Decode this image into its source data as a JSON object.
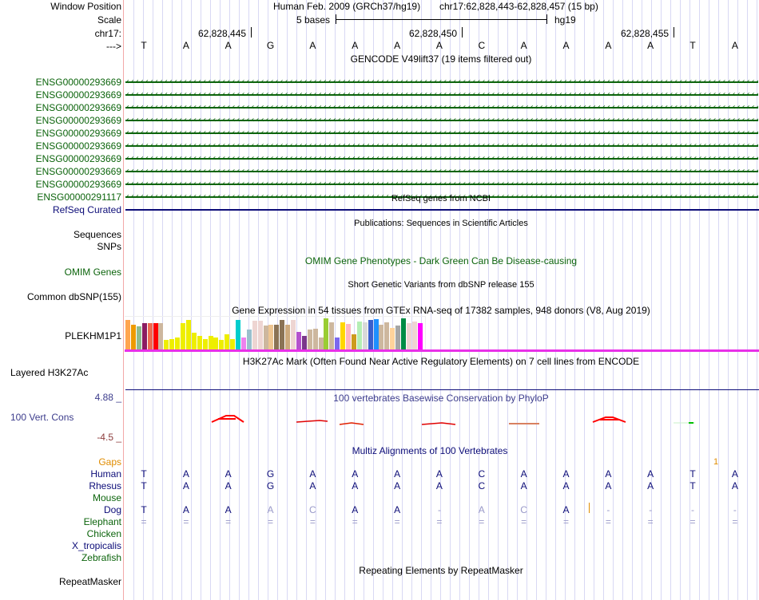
{
  "header": {
    "window_position_label": "Window Position",
    "assembly": "Human Feb. 2009 (GRCh37/hg19)",
    "position": "chr17:62,828,443-62,828,457 (15 bp)",
    "scale_label": "Scale",
    "scale_text": "5 bases",
    "scale_db": "hg19",
    "chrom_label": "chr17:",
    "ticks": [
      "62,828,445",
      "62,828,450",
      "62,828,455"
    ],
    "strand_label": "--->",
    "bases": [
      "T",
      "A",
      "A",
      "G",
      "A",
      "A",
      "A",
      "A",
      "C",
      "A",
      "A",
      "A",
      "A",
      "T",
      "A"
    ]
  },
  "gencode": {
    "title": "GENCODE V49lift37 (19 items filtered out)",
    "genes": [
      "ENSG00000293669",
      "ENSG00000293669",
      "ENSG00000293669",
      "ENSG00000293669",
      "ENSG00000293669",
      "ENSG00000293669",
      "ENSG00000293669",
      "ENSG00000293669",
      "ENSG00000293669",
      "ENSG00000291117"
    ],
    "color": "#0c640c"
  },
  "refseq": {
    "title": "RefSeq genes from NCBI",
    "label": "RefSeq Curated"
  },
  "publications": {
    "title": "Publications: Sequences in Scientific Articles",
    "label1": "Sequences",
    "label2": "SNPs"
  },
  "omim": {
    "title": "OMIM Gene Phenotypes - Dark Green Can Be Disease-causing",
    "label": "OMIM Genes"
  },
  "dbsnp": {
    "title": "Short Genetic Variants from dbSNP release 155",
    "label": "Common dbSNP(155)"
  },
  "gtex": {
    "title": "Gene Expression in 54 tissues from GTEx RNA-seq of 17382 samples, 948 donors (V8, Aug 2019)",
    "label": "PLEKHM1P1",
    "bars": [
      {
        "c": "#ffa54f",
        "v": 0.96
      },
      {
        "c": "#ee9a00",
        "v": 0.81
      },
      {
        "c": "#8fbc8f",
        "v": 0.76
      },
      {
        "c": "#8b1c62",
        "v": 0.86
      },
      {
        "c": "#ee6a50",
        "v": 0.86
      },
      {
        "c": "#ff0000",
        "v": 0.86
      },
      {
        "c": "#cdb79e",
        "v": 0.86
      },
      {
        "c": "#eeee00",
        "v": 0.33
      },
      {
        "c": "#eeee00",
        "v": 0.36
      },
      {
        "c": "#eeee00",
        "v": 0.39
      },
      {
        "c": "#eeee00",
        "v": 0.86
      },
      {
        "c": "#eeee00",
        "v": 0.94
      },
      {
        "c": "#eeee00",
        "v": 0.56
      },
      {
        "c": "#eeee00",
        "v": 0.44
      },
      {
        "c": "#eeee00",
        "v": 0.36
      },
      {
        "c": "#eeee00",
        "v": 0.46
      },
      {
        "c": "#eeee00",
        "v": 0.39
      },
      {
        "c": "#eeee00",
        "v": 0.33
      },
      {
        "c": "#eeee00",
        "v": 0.49
      },
      {
        "c": "#eeee00",
        "v": 0.36
      },
      {
        "c": "#00cdcd",
        "v": 0.94
      },
      {
        "c": "#ee82ee",
        "v": 0.41
      },
      {
        "c": "#9ac0cd",
        "v": 0.64
      },
      {
        "c": "#eed5d2",
        "v": 0.92
      },
      {
        "c": "#eed5d2",
        "v": 0.92
      },
      {
        "c": "#cdb79e",
        "v": 0.78
      },
      {
        "c": "#eec591",
        "v": 0.81
      },
      {
        "c": "#8b7355",
        "v": 0.81
      },
      {
        "c": "#8b7355",
        "v": 0.94
      },
      {
        "c": "#cdaa7d",
        "v": 0.81
      },
      {
        "c": "#eed5d2",
        "v": 0.94
      },
      {
        "c": "#b452cd",
        "v": 0.57
      },
      {
        "c": "#7a378b",
        "v": 0.44
      },
      {
        "c": "#cdb79e",
        "v": 0.64
      },
      {
        "c": "#cdb79e",
        "v": 0.67
      },
      {
        "c": "#cdb79e",
        "v": 0.41
      },
      {
        "c": "#9acd32",
        "v": 1.0
      },
      {
        "c": "#cdb79e",
        "v": 0.88
      },
      {
        "c": "#7b68ee",
        "v": 0.41
      },
      {
        "c": "#ffd700",
        "v": 0.88
      },
      {
        "c": "#ffb6c1",
        "v": 0.83
      },
      {
        "c": "#cd9b1d",
        "v": 0.51
      },
      {
        "c": "#b4eeb4",
        "v": 0.91
      },
      {
        "c": "#d9d9d9",
        "v": 0.88
      },
      {
        "c": "#3a5fcd",
        "v": 0.94
      },
      {
        "c": "#1e90ff",
        "v": 0.98
      },
      {
        "c": "#cdb79e",
        "v": 0.81
      },
      {
        "c": "#cdb79e",
        "v": 0.88
      },
      {
        "c": "#ffd39b",
        "v": 0.7
      },
      {
        "c": "#a6a6a6",
        "v": 0.78
      },
      {
        "c": "#008b45",
        "v": 1.0
      },
      {
        "c": "#eed5d2",
        "v": 0.85
      },
      {
        "c": "#eed5d2",
        "v": 0.9
      },
      {
        "c": "#ff00ff",
        "v": 0.84
      }
    ]
  },
  "h3k27ac": {
    "title": "H3K27Ac Mark (Often Found Near Active Regulatory Elements) on 7 cell lines from ENCODE",
    "label": "Layered H3K27Ac"
  },
  "phylop": {
    "title": "100 vertebrates Basewise Conservation by PhyloP",
    "label": "100 Vert. Cons",
    "max_label": "4.88 _",
    "min_label": "-4.5 _"
  },
  "multiz": {
    "title": "Multiz Alignments of 100 Vertebrates",
    "gaps_label": "Gaps",
    "gap_count": "1",
    "species": [
      {
        "name": "Human",
        "color": "#0c0c78"
      },
      {
        "name": "Rhesus",
        "color": "#0c0c78"
      },
      {
        "name": "Mouse",
        "color": "#0c640c"
      },
      {
        "name": "Dog",
        "color": "#0c0c78"
      },
      {
        "name": "Elephant",
        "color": "#0c640c"
      },
      {
        "name": "Chicken",
        "color": "#0c640c"
      },
      {
        "name": "X_tropicalis",
        "color": "#0c0c78"
      },
      {
        "name": "Zebrafish",
        "color": "#0c640c"
      }
    ],
    "human": [
      "T",
      "A",
      "A",
      "G",
      "A",
      "A",
      "A",
      "A",
      "C",
      "A",
      "A",
      "A",
      "A",
      "T",
      "A"
    ],
    "rhesus": [
      "T",
      "A",
      "A",
      "G",
      "A",
      "A",
      "A",
      "A",
      "C",
      "A",
      "A",
      "A",
      "A",
      "T",
      "A"
    ],
    "dog": [
      "T",
      "A",
      "A",
      "A",
      "C",
      "A",
      "A",
      "-",
      "A",
      "C",
      "A",
      "-",
      "-",
      "-",
      "-"
    ],
    "dog_faint": [
      false,
      false,
      false,
      true,
      true,
      false,
      false,
      true,
      true,
      true,
      false,
      true,
      true,
      true,
      true
    ],
    "elephant": [
      "=",
      "=",
      "=",
      "=",
      "=",
      "=",
      "=",
      "=",
      "=",
      "=",
      "=",
      "=",
      "=",
      "=",
      "="
    ]
  },
  "repeatmasker": {
    "title": "Repeating Elements by RepeatMasker",
    "label": "RepeatMasker"
  }
}
